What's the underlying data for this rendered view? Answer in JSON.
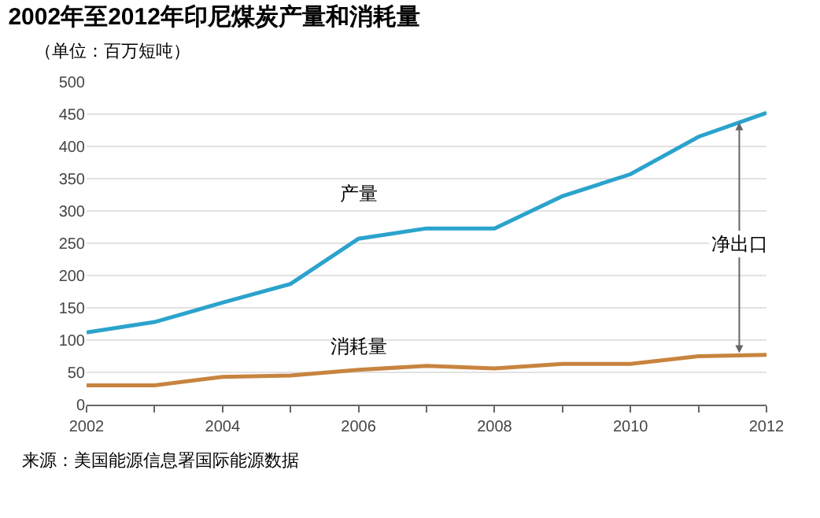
{
  "chart_data": {
    "type": "line",
    "title": "2002年至2012年印尼煤炭产量和消耗量",
    "subtitle": "（单位：百万短吨）",
    "x": [
      2002,
      2003,
      2004,
      2005,
      2006,
      2007,
      2008,
      2009,
      2010,
      2011,
      2012
    ],
    "series": [
      {
        "name": "产量",
        "color": "#2ba3cc",
        "values": [
          112,
          128,
          158,
          187,
          257,
          273,
          273,
          323,
          357,
          415,
          452
        ]
      },
      {
        "name": "消耗量",
        "color": "#c8843f",
        "values": [
          30,
          30,
          43,
          45,
          54,
          60,
          56,
          63,
          63,
          75,
          77
        ]
      }
    ],
    "annotations": [
      {
        "text": "净出口",
        "x": 2011.6,
        "y": 250
      },
      "来源：美国能源信息署国际能源数据"
    ],
    "xlim": [
      2002,
      2012
    ],
    "xticks": [
      2002,
      {
        "value": 2003,
        "label": null
      },
      2004,
      {
        "value": 2005,
        "label": null
      },
      2006,
      {
        "value": 2007,
        "label": null
      },
      2008,
      {
        "value": 2009,
        "label": null
      },
      2010,
      {
        "value": 2011,
        "label": null
      },
      2012
    ],
    "ylim": [
      0,
      500
    ],
    "yticks": [
      0,
      50,
      100,
      150,
      200,
      250,
      300,
      350,
      400,
      450,
      500
    ],
    "grid": "y",
    "legend": false,
    "marker": "none",
    "line_style": "solid"
  }
}
